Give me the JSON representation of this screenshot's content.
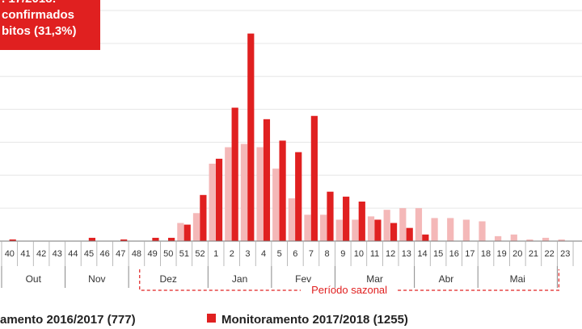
{
  "callout": {
    "lines": [
      ". 17/2018:",
      "confirmados",
      "bitos (31,3%)"
    ],
    "color": "#e02020"
  },
  "chart_data": {
    "type": "bar",
    "title": "",
    "xlabel": "",
    "ylabel": "",
    "categories": [
      "40",
      "41",
      "42",
      "43",
      "44",
      "45",
      "46",
      "47",
      "48",
      "49",
      "50",
      "51",
      "52",
      "1",
      "2",
      "3",
      "4",
      "5",
      "6",
      "7",
      "8",
      "9",
      "10",
      "11",
      "12",
      "13",
      "14",
      "15",
      "16",
      "17",
      "18",
      "19",
      "20",
      "21",
      "22",
      "23"
    ],
    "months": [
      {
        "label": "Out",
        "from": 0,
        "to": 3
      },
      {
        "label": "Nov",
        "from": 4,
        "to": 7
      },
      {
        "label": "Dez",
        "from": 8,
        "to": 12
      },
      {
        "label": "Jan",
        "from": 13,
        "to": 16
      },
      {
        "label": "Fev",
        "from": 17,
        "to": 20
      },
      {
        "label": "Mar",
        "from": 21,
        "to": 25
      },
      {
        "label": "Abr",
        "from": 26,
        "to": 29
      },
      {
        "label": "Mai",
        "from": 30,
        "to": 34
      }
    ],
    "season": {
      "label": "Período sazonal",
      "from": 9,
      "to": 34
    },
    "ylim": [
      0,
      140
    ],
    "grid": true,
    "legend_position": "bottom",
    "series": [
      {
        "name": "amento 2016/2017 (777)",
        "color": "#f4b8b8",
        "values": [
          0,
          0,
          0,
          0,
          0,
          0,
          0,
          0,
          0,
          0,
          0,
          11,
          17,
          47,
          57,
          59,
          57,
          44,
          26,
          16,
          16,
          13,
          13,
          15,
          19,
          20,
          20,
          14,
          14,
          13,
          12,
          3,
          4,
          1,
          2,
          1
        ]
      },
      {
        "name": "Monitoramento 2017/2018 (1255)",
        "color": "#e02020",
        "values": [
          1,
          0,
          0,
          0,
          0,
          2,
          0,
          1,
          0,
          2,
          2,
          10,
          28,
          50,
          81,
          126,
          74,
          61,
          54,
          76,
          30,
          27,
          24,
          13,
          11,
          8,
          4,
          0,
          0,
          0,
          0,
          0,
          0,
          0,
          0,
          0
        ]
      }
    ]
  }
}
